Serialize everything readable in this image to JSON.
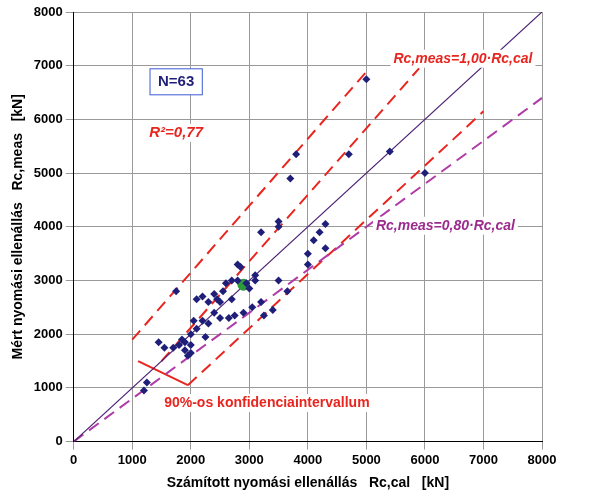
{
  "chart_data": {
    "type": "scatter",
    "xlabel": "Számított nyomási ellenállás   Rc,cal   [kN]",
    "ylabel": "Mért nyomási ellenállás   Rc,meas   [kN]",
    "xlim": [
      0,
      8000
    ],
    "ylim": [
      0,
      8000
    ],
    "xticks": [
      0,
      1000,
      2000,
      3000,
      4000,
      5000,
      6000,
      7000,
      8000
    ],
    "yticks": [
      0,
      1000,
      2000,
      3000,
      4000,
      5000,
      6000,
      7000,
      8000
    ],
    "grid": true,
    "annotations": [
      {
        "text": "N=63",
        "color": "#1f1f7a"
      },
      {
        "text": "R²=0,77",
        "color": "#e8251f"
      },
      {
        "text": "Rc,meas=1,00·Rc,cal",
        "color": "#e8251f"
      },
      {
        "text": "Rc,meas=0,80·Rc,cal",
        "color": "#9b2c8e"
      },
      {
        "text": "90%-os konfidenciaintervallum",
        "color": "#e8251f"
      }
    ],
    "series": [
      {
        "type": "scatter",
        "marker": "diamond",
        "color": "#1f1f7a",
        "x": [
          1200,
          1250,
          1450,
          1550,
          1700,
          1750,
          1800,
          1850,
          1900,
          1900,
          1950,
          2000,
          2000,
          2000,
          2050,
          2100,
          2100,
          2200,
          2200,
          2250,
          2300,
          2300,
          2400,
          2400,
          2450,
          2500,
          2500,
          2550,
          2600,
          2650,
          2700,
          2700,
          2750,
          2800,
          2800,
          2850,
          2900,
          2950,
          3000,
          3050,
          3100,
          3200,
          3200,
          3250,
          3400,
          3500,
          3500,
          3500,
          3650,
          3700,
          3800,
          4000,
          4000,
          4100,
          4200,
          4300,
          4300,
          4700,
          5000,
          5400,
          6000,
          3100
        ],
        "values": [
          950,
          1100,
          1850,
          1750,
          1750,
          2800,
          1800,
          1900,
          1700,
          1850,
          1600,
          1650,
          2000,
          1800,
          2250,
          2650,
          2100,
          2700,
          2250,
          1950,
          2200,
          2600,
          2400,
          2750,
          2650,
          2300,
          2600,
          2800,
          2950,
          2300,
          3000,
          2650,
          2350,
          3300,
          3000,
          3250,
          2400,
          2950,
          2850,
          2500,
          3100,
          3900,
          2600,
          2350,
          2450,
          4100,
          4000,
          3000,
          2800,
          4900,
          5350,
          3500,
          3300,
          3750,
          3900,
          4050,
          3600,
          5350,
          6750,
          5400,
          5000,
          3000
        ]
      },
      {
        "type": "scatter",
        "marker": "circle",
        "color": "#2e9a3a",
        "x": [
          2900
        ],
        "values": [
          2920
        ]
      },
      {
        "type": "line",
        "line_style": "solid",
        "color": "#4b1f73",
        "x": [
          0,
          8000
        ],
        "values": [
          0,
          8000
        ]
      },
      {
        "type": "line",
        "line_style": "dashed",
        "color": "#b03aa6",
        "x": [
          0,
          8000
        ],
        "values": [
          0,
          6400
        ]
      },
      {
        "type": "line",
        "line_style": "dashed",
        "color": "#e8251f",
        "x": [
          1000,
          5050
        ],
        "values": [
          1900,
          6950
        ]
      },
      {
        "type": "line",
        "line_style": "dashed",
        "color": "#e8251f",
        "x": [
          1500,
          5900
        ],
        "values": [
          1500,
          6950
        ]
      },
      {
        "type": "line",
        "line_style": "dashed",
        "color": "#e8251f",
        "x": [
          1950,
          7000
        ],
        "values": [
          1050,
          6150
        ]
      },
      {
        "type": "line",
        "line_style": "solid",
        "color": "#e8251f",
        "x": [
          1100,
          1950
        ],
        "values": [
          1500,
          1050
        ]
      }
    ]
  }
}
